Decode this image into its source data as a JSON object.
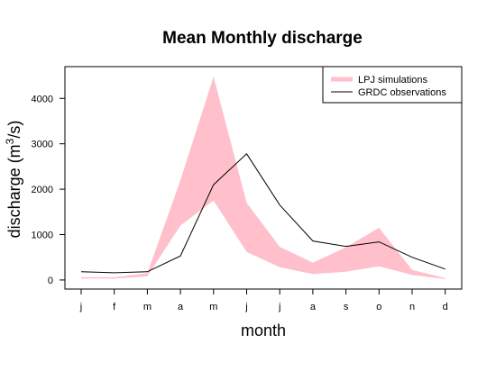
{
  "chart_data": {
    "type": "area",
    "title": "Mean Monthly discharge",
    "xlabel": "month",
    "ylabel": "discharge (m3/s)",
    "ylabel_parts": {
      "main": "discharge (m",
      "superscript": "3",
      "tail": "/s)"
    },
    "ylim": [
      -200,
      4700
    ],
    "yticks": [
      0,
      1000,
      2000,
      3000,
      4000
    ],
    "categories": [
      "j",
      "f",
      "m",
      "a",
      "m",
      "j",
      "j",
      "a",
      "s",
      "o",
      "n",
      "d"
    ],
    "legend_position": "top-right",
    "series": [
      {
        "name": "LPJ simulations",
        "kind": "band",
        "color": "#ffc0cb",
        "lower": [
          30,
          30,
          80,
          1200,
          1750,
          620,
          280,
          130,
          180,
          300,
          110,
          20
        ],
        "upper": [
          60,
          60,
          150,
          2200,
          4480,
          1700,
          730,
          380,
          720,
          1150,
          220,
          40
        ]
      },
      {
        "name": "GRDC observations",
        "kind": "line",
        "color": "#000000",
        "values": [
          180,
          160,
          180,
          530,
          2100,
          2780,
          1650,
          860,
          740,
          840,
          500,
          240
        ]
      }
    ]
  }
}
